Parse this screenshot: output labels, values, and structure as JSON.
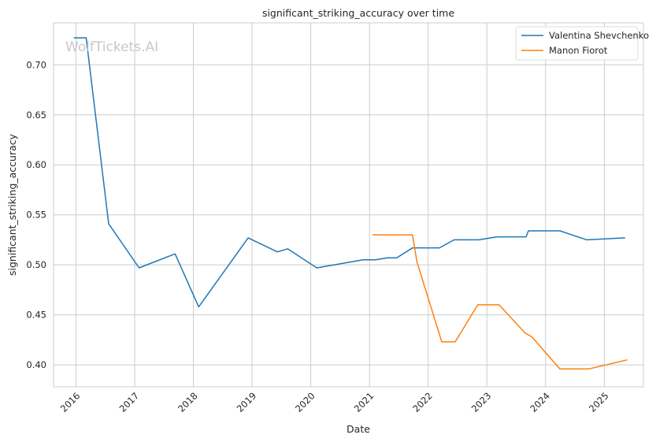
{
  "chart_data": {
    "type": "line",
    "title": "significant_striking_accuracy over time",
    "xlabel": "Date",
    "ylabel": "significant_striking_accuracy",
    "watermark": "WolfTickets.AI",
    "x_axis": {
      "type": "date",
      "range": [
        "2015-08-15",
        "2025-09-01"
      ],
      "ticks": [
        "2016",
        "2017",
        "2018",
        "2019",
        "2020",
        "2021",
        "2022",
        "2023",
        "2024",
        "2025"
      ]
    },
    "y_axis": {
      "range": [
        0.378,
        0.742
      ],
      "ticks": [
        "0.40",
        "0.45",
        "0.50",
        "0.55",
        "0.60",
        "0.65",
        "0.70"
      ]
    },
    "grid": true,
    "legend_position": "top-right",
    "series": [
      {
        "name": "Valentina Shevchenko",
        "color": "#1f77b4",
        "points": [
          [
            "2015-12-19",
            0.727
          ],
          [
            "2016-03-05",
            0.727
          ],
          [
            "2016-07-23",
            0.541
          ],
          [
            "2017-01-28",
            0.497
          ],
          [
            "2017-09-09",
            0.511
          ],
          [
            "2018-02-03",
            0.458
          ],
          [
            "2018-12-08",
            0.527
          ],
          [
            "2019-06-08",
            0.513
          ],
          [
            "2019-08-10",
            0.516
          ],
          [
            "2020-02-08",
            0.497
          ],
          [
            "2020-11-21",
            0.505
          ],
          [
            "2021-02-06",
            0.505
          ],
          [
            "2021-04-24",
            0.507
          ],
          [
            "2021-06-19",
            0.507
          ],
          [
            "2021-09-25",
            0.517
          ],
          [
            "2022-03-12",
            0.517
          ],
          [
            "2022-06-11",
            0.525
          ],
          [
            "2022-11-12",
            0.525
          ],
          [
            "2023-03-04",
            0.528
          ],
          [
            "2023-09-02",
            0.528
          ],
          [
            "2023-09-16",
            0.534
          ],
          [
            "2024-03-30",
            0.534
          ],
          [
            "2024-09-14",
            0.525
          ],
          [
            "2025-05-10",
            0.527
          ]
        ]
      },
      {
        "name": "Manon Fiorot",
        "color": "#ff7f0e",
        "points": [
          [
            "2021-01-20",
            0.53
          ],
          [
            "2021-09-25",
            0.53
          ],
          [
            "2021-10-23",
            0.503
          ],
          [
            "2022-03-26",
            0.423
          ],
          [
            "2022-06-18",
            0.423
          ],
          [
            "2022-11-05",
            0.46
          ],
          [
            "2023-03-18",
            0.46
          ],
          [
            "2023-08-26",
            0.432
          ],
          [
            "2023-10-07",
            0.428
          ],
          [
            "2024-03-30",
            0.396
          ],
          [
            "2024-09-28",
            0.396
          ],
          [
            "2025-05-24",
            0.405
          ]
        ]
      }
    ]
  }
}
